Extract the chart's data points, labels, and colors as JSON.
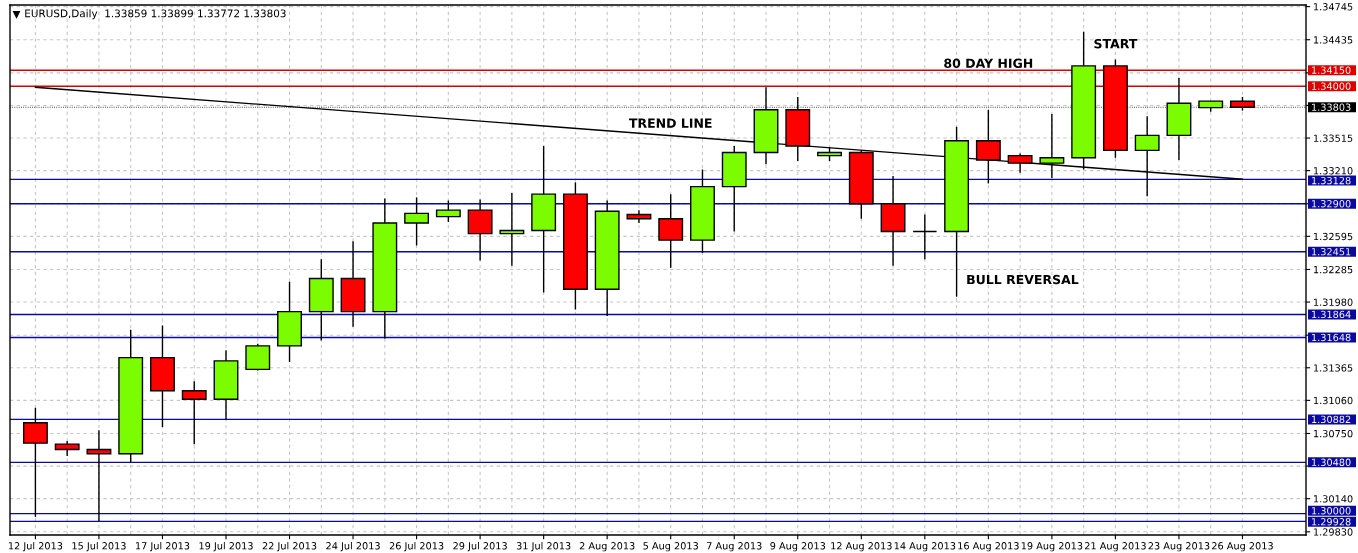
{
  "chart_data": {
    "type": "candlestick",
    "title": "EURUSD,Daily  1.33859 1.33899 1.33772 1.33803",
    "categories": [
      "12 Jul 2013",
      null,
      "15 Jul 2013",
      null,
      "17 Jul 2013",
      null,
      "19 Jul 2013",
      null,
      "22 Jul 2013",
      null,
      "24 Jul 2013",
      null,
      "26 Jul 2013",
      null,
      "29 Jul 2013",
      null,
      "31 Jul 2013",
      null,
      "2 Aug 2013",
      null,
      "5 Aug 2013",
      null,
      "7 Aug 2013",
      null,
      "9 Aug 2013",
      null,
      "12 Aug 2013",
      null,
      "14 Aug 2013",
      null,
      "16 Aug 2013",
      null,
      "19 Aug 2013",
      null,
      "21 Aug 2013",
      null,
      "23 Aug 2013",
      null,
      "26 Aug 2013"
    ],
    "ohlc": [
      [
        1.3085,
        1.3099,
        1.2997,
        1.3066
      ],
      [
        1.3065,
        1.3068,
        1.3054,
        1.306
      ],
      [
        1.306,
        1.3078,
        1.2993,
        1.3056
      ],
      [
        1.3056,
        1.3172,
        1.3048,
        1.3146
      ],
      [
        1.3146,
        1.3176,
        1.3081,
        1.3115
      ],
      [
        1.3115,
        1.3124,
        1.3065,
        1.3107
      ],
      [
        1.3107,
        1.3153,
        1.3088,
        1.3143
      ],
      [
        1.3135,
        1.3159,
        1.3134,
        1.3157
      ],
      [
        1.3157,
        1.3217,
        1.3142,
        1.3189
      ],
      [
        1.3189,
        1.3238,
        1.3162,
        1.322
      ],
      [
        1.322,
        1.3255,
        1.3175,
        1.3189
      ],
      [
        1.3189,
        1.3295,
        1.3164,
        1.3272
      ],
      [
        1.3272,
        1.3296,
        1.3251,
        1.3281
      ],
      [
        1.3278,
        1.3293,
        1.3273,
        1.3284
      ],
      [
        1.3284,
        1.3294,
        1.3237,
        1.3262
      ],
      [
        1.3262,
        1.33,
        1.3232,
        1.3265
      ],
      [
        1.3265,
        1.3344,
        1.3207,
        1.3299
      ],
      [
        1.3299,
        1.331,
        1.3191,
        1.321
      ],
      [
        1.321,
        1.3293,
        1.3185,
        1.3283
      ],
      [
        1.328,
        1.3284,
        1.3272,
        1.3276
      ],
      [
        1.3276,
        1.3299,
        1.323,
        1.3256
      ],
      [
        1.3256,
        1.3322,
        1.3244,
        1.3306
      ],
      [
        1.3306,
        1.3344,
        1.3264,
        1.3338
      ],
      [
        1.3338,
        1.3399,
        1.3327,
        1.3378
      ],
      [
        1.3378,
        1.339,
        1.333,
        1.3344
      ],
      [
        1.3335,
        1.3343,
        1.333,
        1.3338
      ],
      [
        1.3338,
        1.334,
        1.3276,
        1.329
      ],
      [
        1.329,
        1.3316,
        1.3232,
        1.3264
      ],
      [
        1.3264,
        1.328,
        1.3238,
        1.3264
      ],
      [
        1.3264,
        1.3362,
        1.3203,
        1.3349
      ],
      [
        1.3349,
        1.3378,
        1.3309,
        1.3331
      ],
      [
        1.3335,
        1.3337,
        1.3319,
        1.3328
      ],
      [
        1.3328,
        1.3374,
        1.3314,
        1.3333
      ],
      [
        1.3333,
        1.3451,
        1.3322,
        1.3419
      ],
      [
        1.3419,
        1.3425,
        1.3333,
        1.334
      ],
      [
        1.334,
        1.3372,
        1.3297,
        1.3354
      ],
      [
        1.3354,
        1.3408,
        1.3331,
        1.3384
      ],
      [
        1.338,
        1.3386,
        1.3376,
        1.3386
      ],
      [
        1.33859,
        1.33899,
        1.33772,
        1.33803
      ]
    ],
    "colors": [
      "#ff0000",
      "#ff0000",
      "#ff0000",
      "#7cfc00",
      "#ff0000",
      "#ff0000",
      "#7cfc00",
      "#7cfc00",
      "#7cfc00",
      "#7cfc00",
      "#ff0000",
      "#7cfc00",
      "#7cfc00",
      "#7cfc00",
      "#ff0000",
      "#7cfc00",
      "#7cfc00",
      "#ff0000",
      "#7cfc00",
      "#ff0000",
      "#ff0000",
      "#7cfc00",
      "#7cfc00",
      "#7cfc00",
      "#ff0000",
      "#7cfc00",
      "#ff0000",
      "#ff0000",
      "#000000",
      "#7cfc00",
      "#ff0000",
      "#ff0000",
      "#7cfc00",
      "#7cfc00",
      "#ff0000",
      "#7cfc00",
      "#7cfc00",
      "#7cfc00",
      "#ff0000"
    ],
    "series": [
      {
        "type": "line",
        "x": [
          "12 Jul 2013",
          "26 Aug 2013"
        ],
        "values": [
          1.3399,
          1.3313
        ],
        "color": "#000000"
      }
    ],
    "ylim": [
      1.298,
      1.3476
    ],
    "yticks": [
      1.34745,
      1.34435,
      {
        "value": 1.34125,
        "label": null
      },
      {
        "value": 1.3382,
        "label": null
      },
      1.33515,
      {
        "value": 1.3321,
        "label": "1.33210"
      },
      {
        "value": 1.329,
        "label": null
      },
      1.32595,
      1.32285,
      {
        "value": 1.3198,
        "label": "1.31980"
      },
      {
        "value": 1.3167,
        "label": null
      },
      1.31365,
      {
        "value": 1.3106,
        "label": "1.31060"
      },
      {
        "value": 1.3075,
        "label": "1.30750"
      },
      {
        "value": 1.30445,
        "label": null
      },
      {
        "value": 1.3014,
        "label": "1.30140"
      },
      {
        "value": 1.2983,
        "label": "1.29830"
      }
    ],
    "ref_lines": [
      {
        "axis": "y",
        "value": 1.3415,
        "label": "1.34150",
        "color": "#e00000"
      },
      {
        "axis": "y",
        "value": 1.34,
        "label": "1.34000",
        "color": "#e00000"
      },
      {
        "axis": "y",
        "value": 1.33803,
        "label": "1.33803",
        "color": "#000000",
        "line_style": "dotted"
      },
      {
        "axis": "y",
        "value": 1.33128,
        "label": "1.33128",
        "color": "#0a0aa0"
      },
      {
        "axis": "y",
        "value": 1.329,
        "label": "1.32900",
        "color": "#0a0aa0"
      },
      {
        "axis": "y",
        "value": 1.32451,
        "label": "1.32451",
        "color": "#0a0aa0"
      },
      {
        "axis": "y",
        "value": 1.31864,
        "label": "1.31864",
        "color": "#0a0aa0"
      },
      {
        "axis": "y",
        "value": 1.31648,
        "label": "1.31648",
        "color": "#0a0aa0"
      },
      {
        "axis": "y",
        "value": 1.30882,
        "label": "1.30882",
        "color": "#0a0aa0"
      },
      {
        "axis": "y",
        "value": 1.3048,
        "label": "1.30480",
        "color": "#0a0aa0"
      },
      {
        "axis": "y",
        "value": 1.3,
        "label": "1.30000",
        "color": "#0a0aa0"
      },
      {
        "axis": "y",
        "value": 1.29928,
        "label": "1.29928",
        "color": "#0a0aa0"
      }
    ],
    "annotations": [
      "TREND LINE",
      "80 DAY HIGH",
      "START",
      "BULL REVERSAL"
    ],
    "grid": true
  }
}
